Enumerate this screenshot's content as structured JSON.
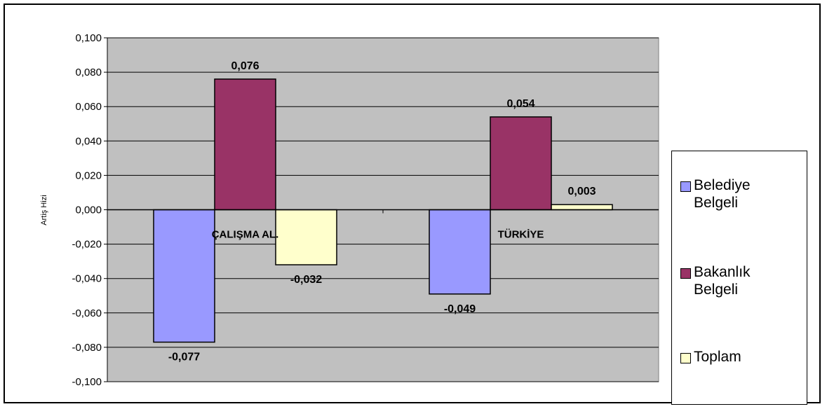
{
  "chart_data": {
    "type": "bar",
    "categories": [
      "ÇALIŞMA AL.",
      "TÜRKİYE"
    ],
    "series": [
      {
        "name": "Belediye Belgeli",
        "values": [
          -0.077,
          -0.049
        ],
        "labels": [
          "-0,077",
          "-0,049"
        ],
        "color": "#9999ff"
      },
      {
        "name": "Bakanlık Belgeli",
        "values": [
          0.076,
          0.054
        ],
        "labels": [
          "0,076",
          "0,054"
        ],
        "color": "#993366"
      },
      {
        "name": "Toplam",
        "values": [
          -0.032,
          0.003
        ],
        "labels": [
          "-0,032",
          "0,003"
        ],
        "color": "#ffffcc"
      }
    ],
    "ylabel": "Artiş Hizi",
    "ylim": [
      -0.1,
      0.1
    ],
    "yticks": [
      0.1,
      0.08,
      0.06,
      0.04,
      0.02,
      0,
      -0.02,
      -0.04,
      -0.06,
      -0.08,
      -0.1
    ],
    "ytick_labels": [
      "0,100",
      "0,080",
      "0,060",
      "0,040",
      "0,020",
      "0,000",
      "-0,020",
      "-0,040",
      "-0,060",
      "-0,080",
      "-0,100"
    ],
    "grid": true,
    "plot_background": "#c0c0c0",
    "legend_position": "right"
  },
  "legend": {
    "items": [
      {
        "label": "Belediye Belgeli",
        "color": "#9999ff"
      },
      {
        "label": "Bakanlık Belgeli",
        "color": "#993366"
      },
      {
        "label": "Toplam",
        "color": "#ffffcc"
      }
    ]
  }
}
